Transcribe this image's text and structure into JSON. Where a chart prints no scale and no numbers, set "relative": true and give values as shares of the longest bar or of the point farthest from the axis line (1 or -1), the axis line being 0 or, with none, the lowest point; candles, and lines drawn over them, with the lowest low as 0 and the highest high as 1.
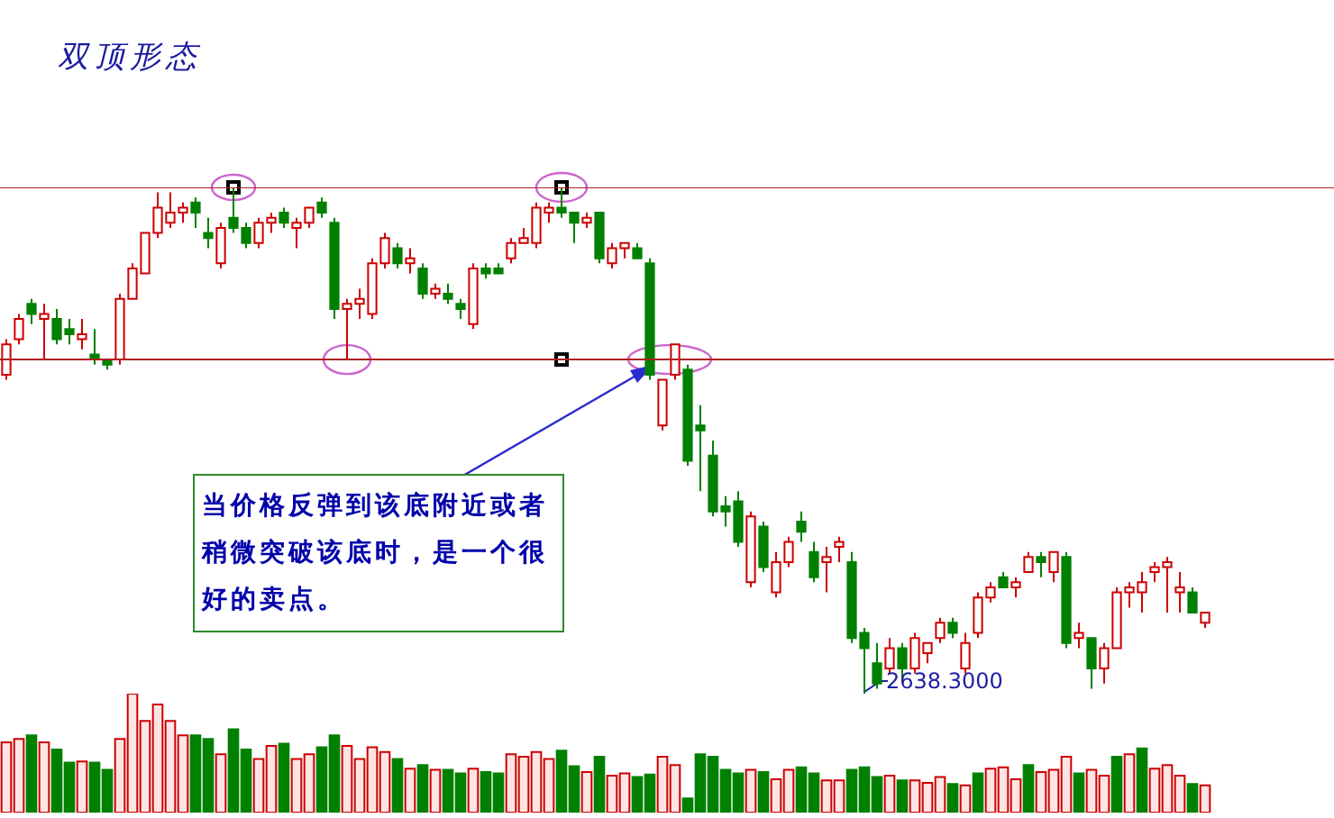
{
  "chart_data": [
    {
      "type": "candlestick",
      "title": "双顶形态",
      "relative": true,
      "categories": [
        null,
        null,
        null,
        null,
        null,
        null,
        null,
        null,
        null,
        null,
        null,
        null,
        null,
        null,
        null,
        null,
        null,
        null,
        null,
        null,
        null,
        null,
        null,
        null,
        null,
        null,
        null,
        null,
        null,
        null,
        null,
        null,
        null,
        null,
        null,
        null,
        null,
        null,
        null,
        null,
        null,
        null,
        null,
        null,
        null,
        null,
        null,
        null,
        null,
        null,
        null,
        null,
        null,
        null,
        null,
        null,
        null,
        null,
        null,
        null,
        null,
        null,
        null,
        null,
        null,
        null,
        null,
        null,
        null,
        null,
        null,
        null,
        null,
        null,
        null,
        null,
        null,
        null,
        null,
        null,
        null,
        null,
        null,
        null,
        null,
        null,
        null,
        null,
        null,
        null,
        null,
        null,
        null,
        null,
        null,
        null
      ],
      "ohlc": [
        [
          0.63,
          0.7,
          0.62,
          0.69
        ],
        [
          0.7,
          0.75,
          0.69,
          0.74
        ],
        [
          0.77,
          0.78,
          0.73,
          0.75
        ],
        [
          0.74,
          0.77,
          0.66,
          0.75
        ],
        [
          0.74,
          0.76,
          0.69,
          0.7
        ],
        [
          0.72,
          0.74,
          0.69,
          0.71
        ],
        [
          0.7,
          0.74,
          0.68,
          0.71
        ],
        [
          0.67,
          0.72,
          0.65,
          0.66
        ],
        [
          0.66,
          0.66,
          0.64,
          0.65
        ],
        [
          0.66,
          0.79,
          0.65,
          0.78
        ],
        [
          0.78,
          0.85,
          0.78,
          0.84
        ],
        [
          0.83,
          0.91,
          0.83,
          0.91
        ],
        [
          0.91,
          0.99,
          0.9,
          0.96
        ],
        [
          0.93,
          0.99,
          0.92,
          0.95
        ],
        [
          0.95,
          0.97,
          0.93,
          0.96
        ],
        [
          0.97,
          0.98,
          0.92,
          0.95
        ],
        [
          0.91,
          0.94,
          0.88,
          0.9
        ],
        [
          0.85,
          0.93,
          0.84,
          0.92
        ],
        [
          0.94,
          1.0,
          0.91,
          0.92
        ],
        [
          0.92,
          0.93,
          0.88,
          0.89
        ],
        [
          0.89,
          0.94,
          0.88,
          0.93
        ],
        [
          0.93,
          0.95,
          0.91,
          0.94
        ],
        [
          0.95,
          0.96,
          0.92,
          0.93
        ],
        [
          0.92,
          0.94,
          0.88,
          0.93
        ],
        [
          0.93,
          0.96,
          0.92,
          0.96
        ],
        [
          0.97,
          0.98,
          0.94,
          0.95
        ],
        [
          0.93,
          0.94,
          0.74,
          0.76
        ],
        [
          0.76,
          0.78,
          0.66,
          0.77
        ],
        [
          0.77,
          0.8,
          0.74,
          0.78
        ],
        [
          0.75,
          0.86,
          0.74,
          0.85
        ],
        [
          0.85,
          0.91,
          0.84,
          0.9
        ],
        [
          0.88,
          0.89,
          0.84,
          0.85
        ],
        [
          0.85,
          0.88,
          0.83,
          0.86
        ],
        [
          0.84,
          0.85,
          0.78,
          0.79
        ],
        [
          0.79,
          0.81,
          0.78,
          0.8
        ],
        [
          0.79,
          0.81,
          0.77,
          0.78
        ],
        [
          0.77,
          0.78,
          0.74,
          0.76
        ],
        [
          0.73,
          0.85,
          0.72,
          0.84
        ],
        [
          0.84,
          0.85,
          0.82,
          0.83
        ],
        [
          0.84,
          0.85,
          0.83,
          0.83
        ],
        [
          0.86,
          0.9,
          0.85,
          0.89
        ],
        [
          0.89,
          0.92,
          0.89,
          0.9
        ],
        [
          0.89,
          0.97,
          0.88,
          0.96
        ],
        [
          0.95,
          0.97,
          0.93,
          0.96
        ],
        [
          0.96,
          1.0,
          0.94,
          0.95
        ],
        [
          0.95,
          0.95,
          0.89,
          0.93
        ],
        [
          0.93,
          0.95,
          0.92,
          0.94
        ],
        [
          0.95,
          0.95,
          0.85,
          0.86
        ],
        [
          0.85,
          0.89,
          0.84,
          0.88
        ],
        [
          0.88,
          0.89,
          0.86,
          0.89
        ],
        [
          0.88,
          0.89,
          0.86,
          0.86
        ],
        [
          0.85,
          0.86,
          0.62,
          0.63
        ],
        [
          0.53,
          0.62,
          0.52,
          0.62
        ],
        [
          0.63,
          0.69,
          0.62,
          0.69
        ],
        [
          0.64,
          0.65,
          0.45,
          0.46
        ],
        [
          0.53,
          0.57,
          0.4,
          0.52
        ],
        [
          0.47,
          0.5,
          0.35,
          0.36
        ],
        [
          0.37,
          0.39,
          0.33,
          0.36
        ],
        [
          0.38,
          0.4,
          0.29,
          0.3
        ],
        [
          0.22,
          0.36,
          0.21,
          0.35
        ],
        [
          0.33,
          0.34,
          0.24,
          0.25
        ],
        [
          0.2,
          0.28,
          0.19,
          0.26
        ],
        [
          0.26,
          0.31,
          0.25,
          0.3
        ],
        [
          0.34,
          0.36,
          0.3,
          0.32
        ],
        [
          0.28,
          0.3,
          0.22,
          0.23
        ],
        [
          0.26,
          0.29,
          0.2,
          0.27
        ],
        [
          0.29,
          0.31,
          0.26,
          0.3
        ],
        [
          0.26,
          0.28,
          0.1,
          0.11
        ],
        [
          0.12,
          0.13,
          0.0,
          0.09
        ],
        [
          0.06,
          0.1,
          0.01,
          0.02
        ],
        [
          0.05,
          0.11,
          0.04,
          0.09
        ],
        [
          0.09,
          0.1,
          0.03,
          0.05
        ],
        [
          0.05,
          0.12,
          0.04,
          0.11
        ],
        [
          0.08,
          0.1,
          0.06,
          0.1
        ],
        [
          0.11,
          0.15,
          0.1,
          0.14
        ],
        [
          0.14,
          0.15,
          0.11,
          0.12
        ],
        [
          0.05,
          0.12,
          0.04,
          0.1
        ],
        [
          0.12,
          0.2,
          0.11,
          0.19
        ],
        [
          0.19,
          0.22,
          0.18,
          0.21
        ],
        [
          0.23,
          0.24,
          0.21,
          0.21
        ],
        [
          0.21,
          0.23,
          0.19,
          0.22
        ],
        [
          0.24,
          0.28,
          0.24,
          0.27
        ],
        [
          0.27,
          0.28,
          0.23,
          0.26
        ],
        [
          0.24,
          0.28,
          0.22,
          0.28
        ],
        [
          0.27,
          0.28,
          0.09,
          0.1
        ],
        [
          0.11,
          0.14,
          0.09,
          0.12
        ],
        [
          0.11,
          0.11,
          0.01,
          0.05
        ],
        [
          0.05,
          0.1,
          0.02,
          0.09
        ],
        [
          0.09,
          0.21,
          0.09,
          0.2
        ],
        [
          0.2,
          0.22,
          0.17,
          0.21
        ],
        [
          0.2,
          0.24,
          0.16,
          0.22
        ],
        [
          0.24,
          0.26,
          0.22,
          0.25
        ],
        [
          0.25,
          0.27,
          0.16,
          0.26
        ],
        [
          0.2,
          0.24,
          0.16,
          0.21
        ],
        [
          0.2,
          0.21,
          0.16,
          0.16
        ],
        [
          0.14,
          0.16,
          0.13,
          0.16
        ]
      ],
      "colors": [
        "#cc0000",
        "#cc0000",
        "#008000",
        "#cc0000",
        "#008000",
        "#008000",
        "#cc0000",
        "#008000",
        "#008000",
        "#cc0000",
        "#cc0000",
        "#cc0000",
        "#cc0000",
        "#cc0000",
        "#cc0000",
        "#008000",
        "#008000",
        "#cc0000",
        "#008000",
        "#008000",
        "#cc0000",
        "#cc0000",
        "#008000",
        "#cc0000",
        "#cc0000",
        "#008000",
        "#008000",
        "#cc0000",
        "#cc0000",
        "#cc0000",
        "#cc0000",
        "#008000",
        "#cc0000",
        "#008000",
        "#cc0000",
        "#008000",
        "#008000",
        "#cc0000",
        "#008000",
        "#008000",
        "#cc0000",
        "#cc0000",
        "#cc0000",
        "#cc0000",
        "#008000",
        "#008000",
        "#cc0000",
        "#008000",
        "#cc0000",
        "#cc0000",
        "#008000",
        "#008000",
        "#cc0000",
        "#cc0000",
        "#008000",
        "#008000",
        "#008000",
        "#008000",
        "#008000",
        "#cc0000",
        "#008000",
        "#cc0000",
        "#cc0000",
        "#008000",
        "#008000",
        "#cc0000",
        "#cc0000",
        "#008000",
        "#008000",
        "#008000",
        "#cc0000",
        "#008000",
        "#cc0000",
        "#cc0000",
        "#cc0000",
        "#008000",
        "#cc0000",
        "#cc0000",
        "#cc0000",
        "#008000",
        "#cc0000",
        "#cc0000",
        "#008000",
        "#cc0000",
        "#008000",
        "#cc0000",
        "#008000",
        "#cc0000",
        "#cc0000",
        "#cc0000",
        "#cc0000",
        "#cc0000",
        "#cc0000",
        "#cc0000",
        "#008000",
        "#cc0000"
      ],
      "ref_lines": [
        {
          "axis": "y",
          "value": 1.0,
          "color": "#b02020"
        },
        {
          "axis": "y",
          "value": 0.66,
          "color": "#b02020"
        }
      ],
      "annotations": [
        "当价格反弹到该底附近或者稍微突破该底时，是一个很好的卖点。",
        "2638.3000"
      ]
    },
    {
      "type": "bar",
      "relative": true,
      "categories": [
        null,
        null,
        null,
        null,
        null,
        null,
        null,
        null,
        null,
        null,
        null,
        null,
        null,
        null,
        null,
        null,
        null,
        null,
        null,
        null,
        null,
        null,
        null,
        null,
        null,
        null,
        null,
        null,
        null,
        null,
        null,
        null,
        null,
        null,
        null,
        null,
        null,
        null,
        null,
        null,
        null,
        null,
        null,
        null,
        null,
        null,
        null,
        null,
        null,
        null,
        null,
        null,
        null,
        null,
        null,
        null,
        null,
        null,
        null,
        null,
        null,
        null,
        null,
        null,
        null,
        null,
        null,
        null,
        null,
        null,
        null,
        null,
        null,
        null,
        null,
        null,
        null,
        null,
        null,
        null,
        null,
        null,
        null,
        null,
        null,
        null,
        null,
        null,
        null,
        null,
        null,
        null,
        null,
        null,
        null,
        null
      ],
      "values": [
        0.59,
        0.62,
        0.65,
        0.59,
        0.53,
        0.42,
        0.43,
        0.42,
        0.36,
        0.62,
        1.0,
        0.77,
        0.91,
        0.77,
        0.65,
        0.65,
        0.62,
        0.49,
        0.7,
        0.53,
        0.45,
        0.56,
        0.58,
        0.45,
        0.49,
        0.55,
        0.65,
        0.56,
        0.45,
        0.55,
        0.51,
        0.45,
        0.37,
        0.4,
        0.36,
        0.36,
        0.33,
        0.37,
        0.34,
        0.33,
        0.49,
        0.47,
        0.51,
        0.45,
        0.52,
        0.39,
        0.34,
        0.47,
        0.31,
        0.33,
        0.3,
        0.32,
        0.47,
        0.4,
        0.12,
        0.49,
        0.47,
        0.36,
        0.33,
        0.36,
        0.34,
        0.28,
        0.36,
        0.38,
        0.33,
        0.27,
        0.27,
        0.36,
        0.38,
        0.3,
        0.31,
        0.27,
        0.27,
        0.25,
        0.3,
        0.24,
        0.23,
        0.33,
        0.37,
        0.38,
        0.28,
        0.4,
        0.34,
        0.36,
        0.47,
        0.33,
        0.36,
        0.31,
        0.47,
        0.49,
        0.54,
        0.37,
        0.4,
        0.31,
        0.24,
        0.23
      ],
      "colors": [
        "#cc0000",
        "#cc0000",
        "#008000",
        "#cc0000",
        "#008000",
        "#008000",
        "#cc0000",
        "#008000",
        "#008000",
        "#cc0000",
        "#cc0000",
        "#cc0000",
        "#cc0000",
        "#cc0000",
        "#cc0000",
        "#008000",
        "#008000",
        "#cc0000",
        "#008000",
        "#008000",
        "#cc0000",
        "#cc0000",
        "#008000",
        "#cc0000",
        "#cc0000",
        "#008000",
        "#008000",
        "#cc0000",
        "#cc0000",
        "#cc0000",
        "#cc0000",
        "#008000",
        "#cc0000",
        "#008000",
        "#cc0000",
        "#008000",
        "#008000",
        "#cc0000",
        "#008000",
        "#008000",
        "#cc0000",
        "#cc0000",
        "#cc0000",
        "#cc0000",
        "#008000",
        "#008000",
        "#cc0000",
        "#008000",
        "#cc0000",
        "#cc0000",
        "#008000",
        "#008000",
        "#cc0000",
        "#cc0000",
        "#008000",
        "#008000",
        "#008000",
        "#008000",
        "#008000",
        "#cc0000",
        "#008000",
        "#cc0000",
        "#cc0000",
        "#008000",
        "#008000",
        "#cc0000",
        "#cc0000",
        "#008000",
        "#008000",
        "#008000",
        "#cc0000",
        "#008000",
        "#cc0000",
        "#cc0000",
        "#cc0000",
        "#008000",
        "#cc0000",
        "#008000",
        "#cc0000",
        "#cc0000",
        "#cc0000",
        "#008000",
        "#cc0000",
        "#cc0000",
        "#cc0000",
        "#008000",
        "#cc0000",
        "#cc0000",
        "#008000",
        "#cc0000",
        "#008000",
        "#cc0000",
        "#cc0000",
        "#cc0000",
        "#008000",
        "#cc0000"
      ]
    }
  ]
}
